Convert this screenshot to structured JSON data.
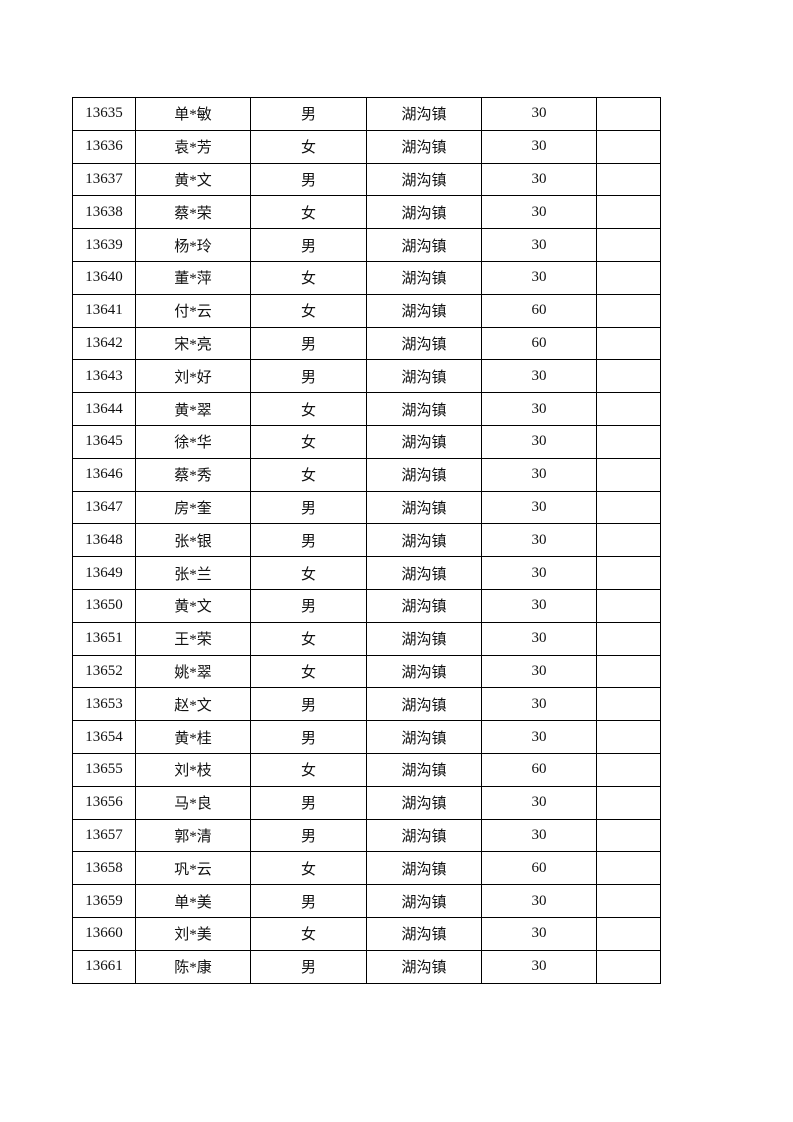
{
  "table": {
    "rows": [
      [
        "13635",
        "单*敏",
        "男",
        "湖沟镇",
        "30",
        ""
      ],
      [
        "13636",
        "袁*芳",
        "女",
        "湖沟镇",
        "30",
        ""
      ],
      [
        "13637",
        "黄*文",
        "男",
        "湖沟镇",
        "30",
        ""
      ],
      [
        "13638",
        "蔡*荣",
        "女",
        "湖沟镇",
        "30",
        ""
      ],
      [
        "13639",
        "杨*玲",
        "男",
        "湖沟镇",
        "30",
        ""
      ],
      [
        "13640",
        "董*萍",
        "女",
        "湖沟镇",
        "30",
        ""
      ],
      [
        "13641",
        "付*云",
        "女",
        "湖沟镇",
        "60",
        ""
      ],
      [
        "13642",
        "宋*亮",
        "男",
        "湖沟镇",
        "60",
        ""
      ],
      [
        "13643",
        "刘*好",
        "男",
        "湖沟镇",
        "30",
        ""
      ],
      [
        "13644",
        "黄*翠",
        "女",
        "湖沟镇",
        "30",
        ""
      ],
      [
        "13645",
        "徐*华",
        "女",
        "湖沟镇",
        "30",
        ""
      ],
      [
        "13646",
        "蔡*秀",
        "女",
        "湖沟镇",
        "30",
        ""
      ],
      [
        "13647",
        "房*奎",
        "男",
        "湖沟镇",
        "30",
        ""
      ],
      [
        "13648",
        "张*银",
        "男",
        "湖沟镇",
        "30",
        ""
      ],
      [
        "13649",
        "张*兰",
        "女",
        "湖沟镇",
        "30",
        ""
      ],
      [
        "13650",
        "黄*文",
        "男",
        "湖沟镇",
        "30",
        ""
      ],
      [
        "13651",
        "王*荣",
        "女",
        "湖沟镇",
        "30",
        ""
      ],
      [
        "13652",
        "姚*翠",
        "女",
        "湖沟镇",
        "30",
        ""
      ],
      [
        "13653",
        "赵*文",
        "男",
        "湖沟镇",
        "30",
        ""
      ],
      [
        "13654",
        "黄*桂",
        "男",
        "湖沟镇",
        "30",
        ""
      ],
      [
        "13655",
        "刘*枝",
        "女",
        "湖沟镇",
        "60",
        ""
      ],
      [
        "13656",
        "马*良",
        "男",
        "湖沟镇",
        "30",
        ""
      ],
      [
        "13657",
        "郭*清",
        "男",
        "湖沟镇",
        "30",
        ""
      ],
      [
        "13658",
        "巩*云",
        "女",
        "湖沟镇",
        "60",
        ""
      ],
      [
        "13659",
        "单*美",
        "男",
        "湖沟镇",
        "30",
        ""
      ],
      [
        "13660",
        "刘*美",
        "女",
        "湖沟镇",
        "30",
        ""
      ],
      [
        "13661",
        "陈*康",
        "男",
        "湖沟镇",
        "30",
        ""
      ]
    ]
  }
}
